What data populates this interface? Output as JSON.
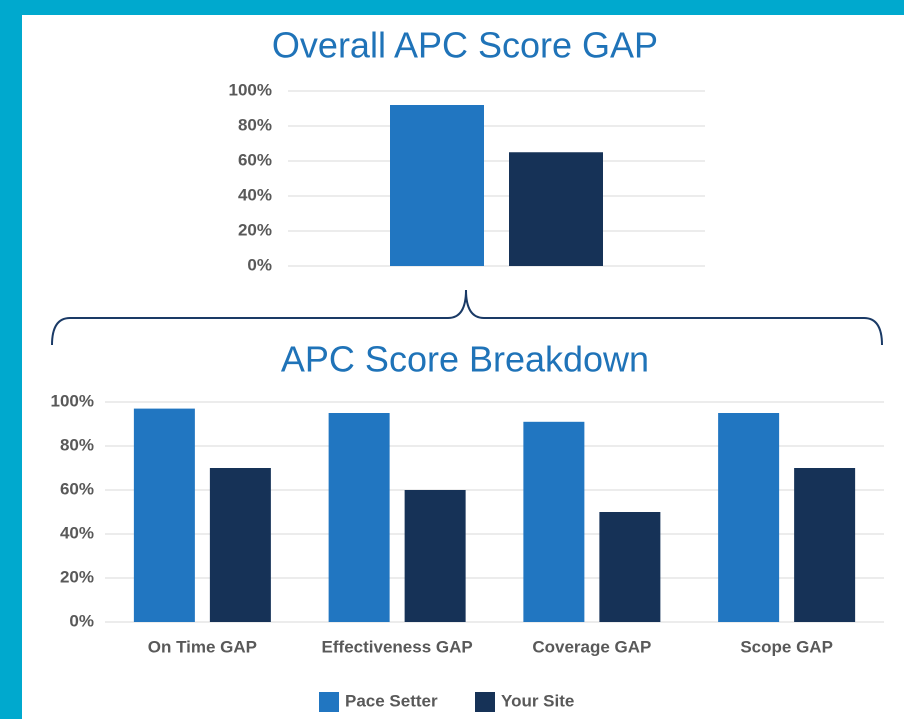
{
  "chart_data": [
    {
      "type": "bar",
      "title": "Overall APC Score GAP",
      "categories": [
        null
      ],
      "series": [
        {
          "color": "#2176c1",
          "values": [
            92
          ]
        },
        {
          "color": "#163257",
          "values": [
            65
          ]
        }
      ],
      "ylim": [
        0,
        100
      ],
      "yticks": [
        {
          "value": 0,
          "label": "0%"
        },
        {
          "value": 20,
          "label": "20%"
        },
        {
          "value": 40,
          "label": "40%"
        },
        {
          "value": 60,
          "label": "60%"
        },
        {
          "value": 80,
          "label": "80%"
        },
        {
          "value": 100,
          "label": "100%"
        }
      ],
      "grid": true
    },
    {
      "type": "bar",
      "title": "APC Score Breakdown",
      "categories": [
        "On Time GAP",
        "Effectiveness GAP",
        "Coverage GAP",
        "Scope GAP"
      ],
      "series": [
        {
          "name": "Pace Setter",
          "color": "#2176c1",
          "values": [
            97,
            95,
            91,
            95
          ]
        },
        {
          "name": "Your Site",
          "color": "#163257",
          "values": [
            70,
            60,
            50,
            70
          ]
        }
      ],
      "ylim": [
        0,
        100
      ],
      "yticks": [
        {
          "value": 0,
          "label": "0%"
        },
        {
          "value": 20,
          "label": "20%"
        },
        {
          "value": 40,
          "label": "40%"
        },
        {
          "value": 60,
          "label": "60%"
        },
        {
          "value": 80,
          "label": "80%"
        },
        {
          "value": 100,
          "label": "100%"
        }
      ],
      "grid": true,
      "legend": "bottom"
    }
  ]
}
